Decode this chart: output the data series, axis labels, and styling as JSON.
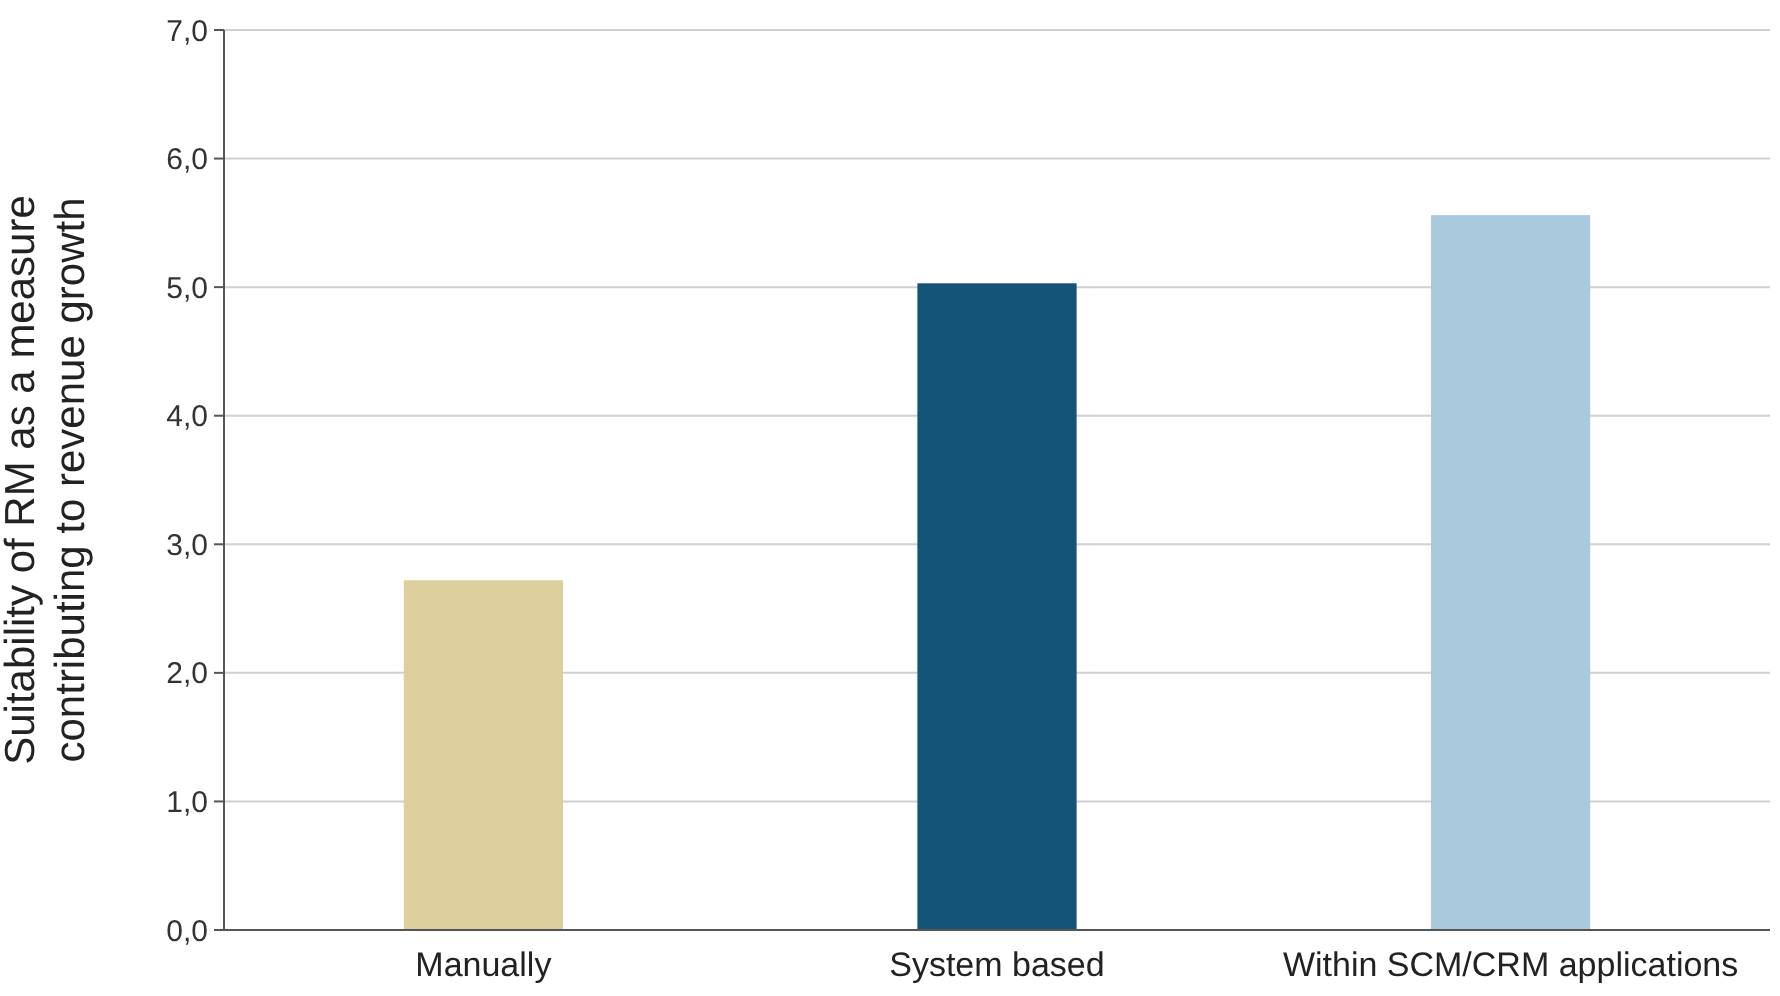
{
  "chart_data": {
    "type": "bar",
    "ylabel": "Suitability of RM as a measure\ncontributing to revenue growth",
    "categories": [
      "Manually",
      "System based",
      "Within SCM/CRM applications"
    ],
    "values": [
      2.72,
      5.03,
      5.56
    ],
    "colors": [
      "#ddcf9d",
      "#155479",
      "#a9c9dc"
    ],
    "ylim": [
      0,
      7
    ],
    "yticks": [
      {
        "value": 0,
        "label": "0,0"
      },
      {
        "value": 1,
        "label": "1,0"
      },
      {
        "value": 2,
        "label": "2,0"
      },
      {
        "value": 3,
        "label": "3,0"
      },
      {
        "value": 4,
        "label": "4,0"
      },
      {
        "value": 5,
        "label": "5,0"
      },
      {
        "value": 6,
        "label": "6,0"
      },
      {
        "value": 7,
        "label": "7,0"
      }
    ],
    "grid": "y"
  }
}
